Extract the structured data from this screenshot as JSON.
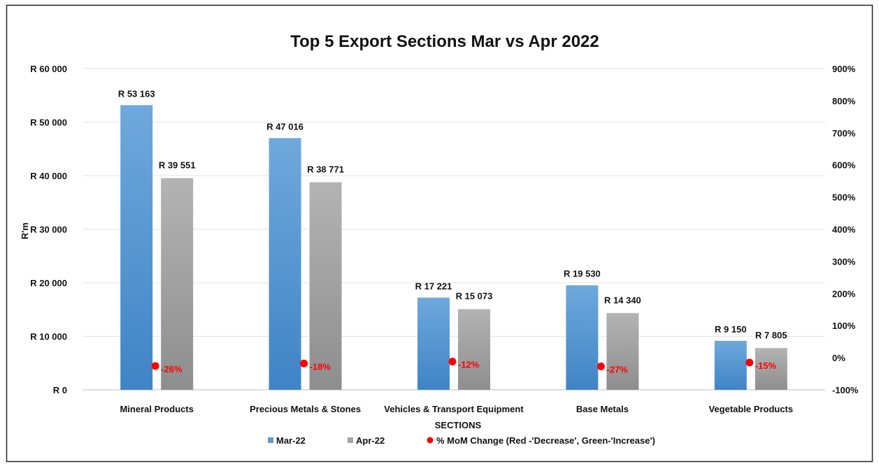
{
  "chart_data": {
    "type": "bar",
    "title": "Top 5 Export Sections  Mar vs Apr 2022",
    "xlabel": "SECTIONS",
    "ylabel": "R'm",
    "categories": [
      "Mineral Products",
      "Precious Metals & Stones",
      "Vehicles & Transport Equipment",
      "Base Metals",
      "Vegetable Products"
    ],
    "series": [
      {
        "name": "Mar-22",
        "values": [
          53163,
          47016,
          17221,
          19530,
          9150
        ],
        "labels": [
          "R 53 163",
          "R 47 016",
          "R 17 221",
          "R 19 530",
          "R 9 150"
        ],
        "color": "#5B9BD5"
      },
      {
        "name": "Apr-22",
        "values": [
          39551,
          38771,
          15073,
          14340,
          7805
        ],
        "labels": [
          "R 39 551",
          "R 38 771",
          "R 15 073",
          "R 14 340",
          "R 7 805"
        ],
        "color": "#A5A5A5"
      }
    ],
    "secondary_series": {
      "name": "% MoM Change (Red -'Decrease', Green-'Increase')",
      "type": "scatter",
      "values": [
        -26,
        -18,
        -12,
        -27,
        -15
      ],
      "labels": [
        "-26%",
        "-18%",
        "-12%",
        "-27%",
        "-15%"
      ],
      "color": "#FF0000"
    },
    "y_axis": {
      "min": 0,
      "max": 60000,
      "step": 10000,
      "ticks": [
        "R 0",
        "R 10 000",
        "R 20 000",
        "R 30 000",
        "R 40 000",
        "R 50 000",
        "R 60 000"
      ]
    },
    "y2_axis": {
      "min": -100,
      "max": 900,
      "step": 100,
      "ticks": [
        "-100%",
        "0%",
        "100%",
        "200%",
        "300%",
        "400%",
        "500%",
        "600%",
        "700%",
        "800%",
        "900%"
      ]
    },
    "grid": true,
    "legend_position": "bottom"
  }
}
